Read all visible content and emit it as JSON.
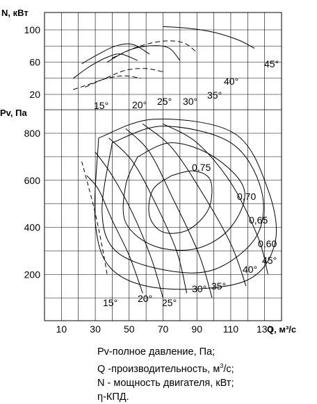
{
  "chart_data": [
    {
      "type": "line",
      "panel": "power",
      "ylabel": "N, кВт",
      "yticks": [
        "100",
        "60",
        "20"
      ],
      "ylim": [
        10,
        110
      ],
      "series": [
        {
          "name": "15°",
          "x": [
            17,
            27,
            37,
            45,
            55
          ],
          "y": [
            40,
            55,
            66,
            70,
            62
          ]
        },
        {
          "name": "20°",
          "x": [
            17,
            27,
            37,
            47,
            57
          ],
          "y": [
            26,
            33,
            40,
            43,
            40
          ]
        },
        {
          "name": "25°",
          "x": [
            22,
            32,
            42,
            52,
            62
          ],
          "y": [
            58,
            70,
            80,
            82,
            70
          ]
        },
        {
          "name": "30°",
          "x": [
            24,
            36,
            48,
            60,
            70
          ],
          "y": [
            29,
            40,
            50,
            52,
            48
          ]
        },
        {
          "name": "35°",
          "x": [
            37,
            49,
            61,
            73,
            80
          ],
          "y": [
            60,
            74,
            80,
            78,
            62
          ]
        },
        {
          "name": "40°",
          "x": [
            40,
            55,
            70,
            82,
            90
          ],
          "y": [
            65,
            79,
            86,
            84,
            72
          ]
        },
        {
          "name": "45°",
          "x": [
            70,
            85,
            100,
            115,
            124
          ],
          "y": [
            104,
            102,
            97,
            87,
            77
          ]
        }
      ],
      "series_labels": [
        "15°",
        "20°",
        "25°",
        "30°",
        "35°",
        "40°",
        "45°"
      ]
    },
    {
      "type": "line",
      "panel": "pressure",
      "ylabel": "Pv, Па",
      "xlabel": "Q, м³/с",
      "xticks": [
        "10",
        "30",
        "50",
        "70",
        "90",
        "110",
        "130"
      ],
      "yticks": [
        "800",
        "600",
        "400",
        "200"
      ],
      "xlim": [
        0,
        140
      ],
      "ylim": [
        0,
        920
      ],
      "series": [
        {
          "name": "15°",
          "x": [
            22,
            25,
            30,
            34,
            37
          ],
          "y": [
            680,
            600,
            460,
            320,
            200
          ]
        },
        {
          "name": "20°",
          "x": [
            25,
            32,
            40,
            50,
            58
          ],
          "y": [
            620,
            560,
            430,
            280,
            120
          ]
        },
        {
          "name": "25°",
          "x": [
            30,
            40,
            52,
            63,
            70
          ],
          "y": [
            720,
            620,
            460,
            270,
            100
          ]
        },
        {
          "name": "30°",
          "x": [
            38,
            52,
            65,
            78,
            84
          ],
          "y": [
            780,
            680,
            510,
            300,
            120
          ]
        },
        {
          "name": "35°",
          "x": [
            48,
            62,
            76,
            91,
            99
          ],
          "y": [
            820,
            720,
            520,
            290,
            100
          ]
        },
        {
          "name": "40°",
          "x": [
            58,
            75,
            92,
            110,
            119
          ],
          "y": [
            840,
            740,
            560,
            330,
            150
          ]
        },
        {
          "name": "45°",
          "x": [
            70,
            90,
            110,
            126,
            132
          ],
          "y": [
            840,
            760,
            590,
            360,
            200
          ]
        }
      ],
      "efficiency_labels": [
        "0,75",
        "0,70",
        "0,65",
        "0,60"
      ],
      "series_labels": [
        "15°",
        "20°",
        "25°",
        "30°",
        "35°",
        "40°",
        "45°"
      ]
    }
  ],
  "legend": {
    "line1": "Pv-полное давление, Па;",
    "line2_pre": "Q -производительность, м",
    "line2_sup": "3",
    "line2_post": "/с;",
    "line3": "N - мощность двигателя, кВт;",
    "line4": "η-КПД."
  }
}
